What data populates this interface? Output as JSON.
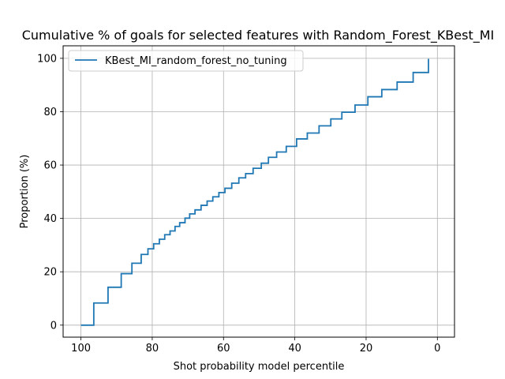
{
  "chart_data": {
    "type": "line",
    "title": "Cumulative % of goals for selected features with Random_Forest_KBest_MI",
    "xlabel": "Shot probability model percentile",
    "ylabel": "Proportion (%)",
    "xlim": [
      105,
      -4.8
    ],
    "ylim": [
      -4.5,
      104.7
    ],
    "x_ticks": [
      100,
      80,
      60,
      40,
      20,
      0
    ],
    "y_ticks": [
      0,
      20,
      40,
      60,
      80,
      100
    ],
    "x_tick_labels": [
      "100",
      "80",
      "60",
      "40",
      "20",
      "0"
    ],
    "y_tick_labels": [
      "0",
      "20",
      "40",
      "60",
      "80",
      "100"
    ],
    "grid": true,
    "legend_position": "top-left",
    "series": [
      {
        "name": "KBest_MI_random_forest_no_tuning",
        "color": "#1f77b4",
        "step": "post",
        "x": [
          100,
          96.4,
          92.4,
          88.7,
          85.7,
          83.1,
          81.2,
          79.6,
          78.0,
          76.5,
          75.0,
          73.6,
          72.3,
          70.8,
          69.5,
          68.0,
          66.3,
          64.6,
          63.0,
          61.3,
          59.6,
          57.7,
          55.7,
          53.8,
          51.7,
          49.4,
          47.4,
          45.1,
          42.4,
          39.5,
          36.5,
          33.2,
          29.9,
          26.8,
          23.1,
          19.5,
          15.6,
          11.3,
          6.8,
          2.5,
          2.5
        ],
        "y": [
          0,
          8.3,
          14.2,
          19.3,
          23.2,
          26.5,
          28.6,
          30.5,
          32.2,
          33.9,
          35.3,
          37.0,
          38.4,
          40.1,
          41.7,
          43.2,
          44.9,
          46.5,
          48.1,
          49.7,
          51.3,
          53.2,
          55.2,
          56.8,
          58.8,
          60.7,
          62.9,
          64.9,
          67.0,
          69.8,
          72.0,
          74.7,
          77.3,
          79.8,
          82.5,
          85.6,
          88.3,
          91.1,
          94.7,
          97.3,
          99.8
        ]
      }
    ]
  }
}
